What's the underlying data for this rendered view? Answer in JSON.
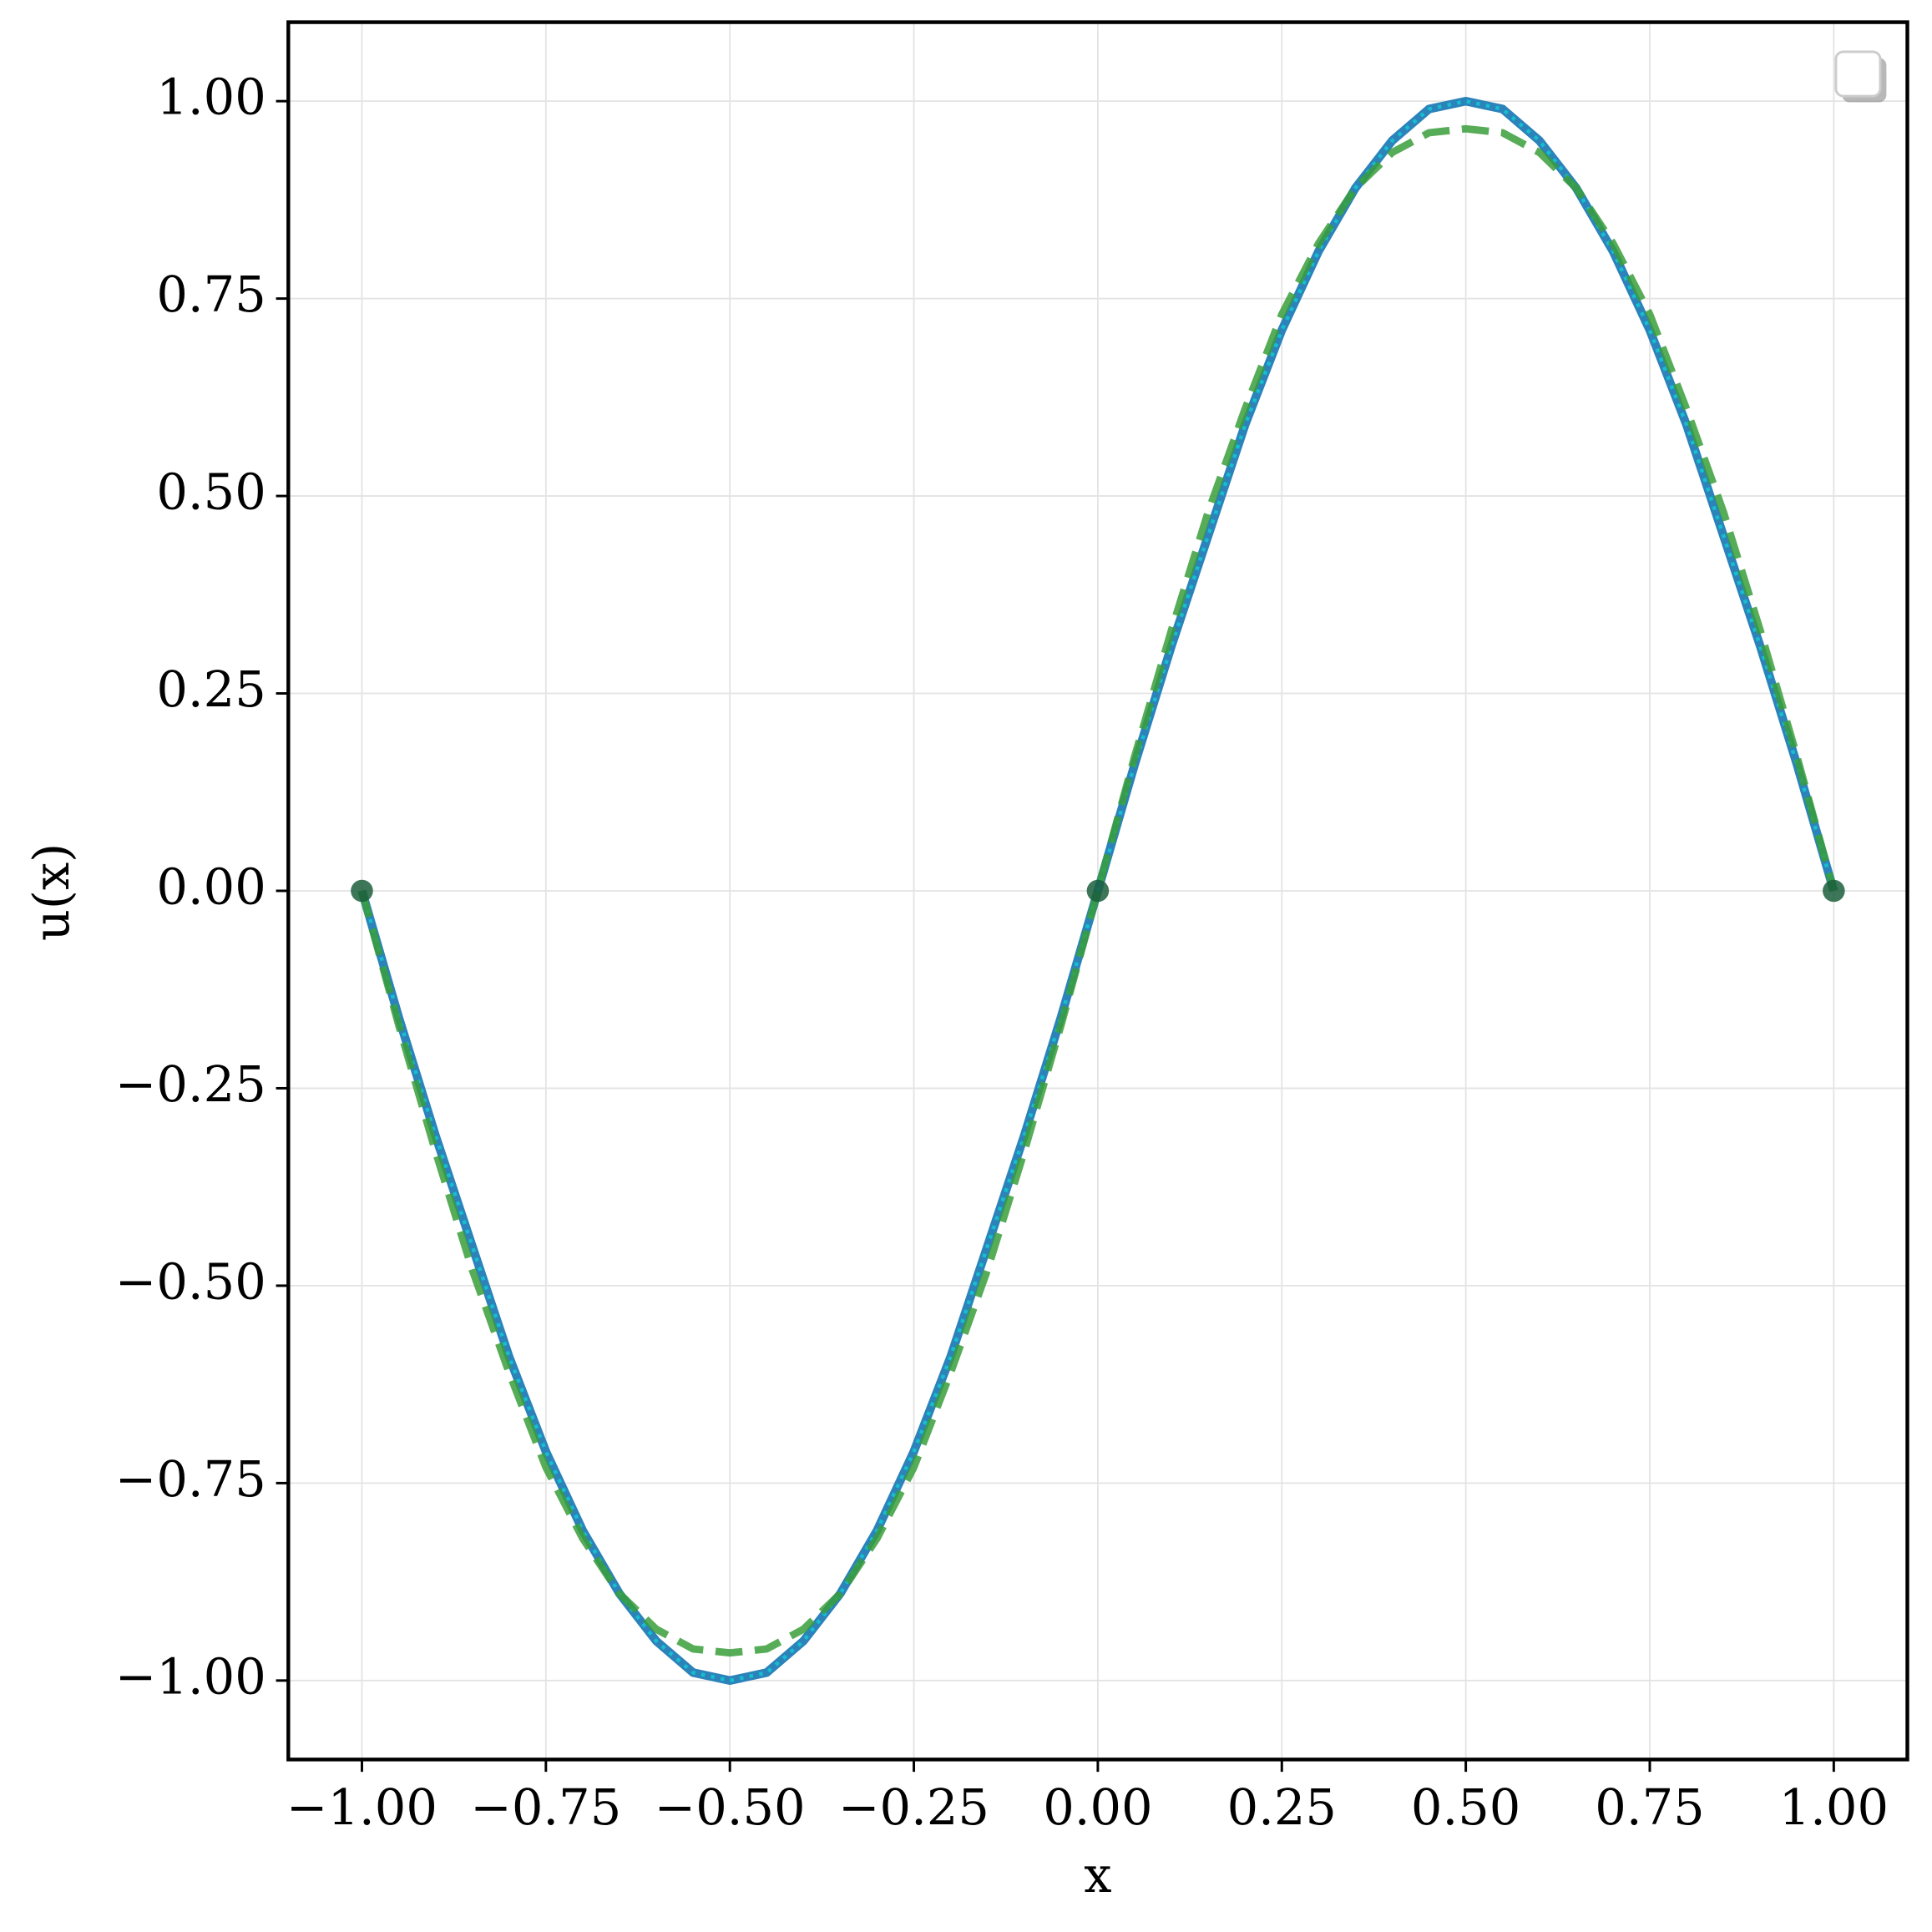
{
  "chart_data": {
    "type": "line",
    "x_label": "x",
    "y_label": "u(x)",
    "x": [
      -1,
      -0.95,
      -0.9,
      -0.85,
      -0.8,
      -0.75,
      -0.7,
      -0.65,
      -0.6,
      -0.55,
      -0.5,
      -0.45,
      -0.4,
      -0.35,
      -0.3,
      -0.25,
      -0.2,
      -0.15,
      -0.1,
      -0.05,
      0,
      0.05,
      0.1,
      0.15,
      0.2,
      0.25,
      0.3,
      0.35,
      0.4,
      0.45,
      0.5,
      0.55,
      0.6,
      0.65,
      0.7,
      0.75,
      0.8,
      0.85,
      0.9,
      0.95,
      1
    ],
    "series": [
      {
        "color": "#2b83ba",
        "style": "solid",
        "width": 7,
        "values": [
          0,
          -0.16,
          -0.31,
          -0.45,
          -0.59,
          -0.71,
          -0.81,
          -0.89,
          -0.95,
          -0.99,
          -1,
          -0.99,
          -0.95,
          -0.89,
          -0.81,
          -0.71,
          -0.59,
          -0.45,
          -0.31,
          -0.16,
          0,
          0.16,
          0.31,
          0.45,
          0.59,
          0.71,
          0.81,
          0.89,
          0.95,
          0.99,
          1,
          0.99,
          0.95,
          0.89,
          0.81,
          0.71,
          0.59,
          0.45,
          0.31,
          0.16,
          0
        ]
      },
      {
        "color": "#17becf",
        "style": "dotted",
        "width": 3,
        "values": [
          0,
          -0.16,
          -0.31,
          -0.45,
          -0.59,
          -0.71,
          -0.81,
          -0.89,
          -0.95,
          -0.99,
          -1,
          -0.99,
          -0.95,
          -0.89,
          -0.81,
          -0.71,
          -0.59,
          -0.45,
          -0.31,
          -0.16,
          0,
          0.16,
          0.31,
          0.45,
          0.59,
          0.71,
          0.81,
          0.89,
          0.95,
          0.99,
          1,
          0.99,
          0.95,
          0.89,
          0.81,
          0.71,
          0.59,
          0.45,
          0.31,
          0.16,
          0
        ]
      },
      {
        "color": "#3a9e3a",
        "style": "dashed",
        "width": 6,
        "values": [
          0,
          -0.17,
          -0.33,
          -0.48,
          -0.61,
          -0.73,
          -0.82,
          -0.89,
          -0.935,
          -0.96,
          -0.965,
          -0.96,
          -0.935,
          -0.89,
          -0.82,
          -0.73,
          -0.61,
          -0.48,
          -0.33,
          -0.17,
          0,
          0.17,
          0.33,
          0.48,
          0.61,
          0.73,
          0.82,
          0.89,
          0.935,
          0.96,
          0.965,
          0.96,
          0.935,
          0.89,
          0.82,
          0.73,
          0.61,
          0.48,
          0.33,
          0.17,
          0
        ]
      },
      {
        "type": "scatter",
        "color": "#1b5e3b",
        "x": [
          -1,
          0,
          1
        ],
        "values": [
          0,
          0,
          0
        ]
      }
    ],
    "xlim": [
      -1.1,
      1.1
    ],
    "ylim": [
      -1.1,
      1.1
    ],
    "xticks": [
      {
        "value": -1,
        "label": "−1.00"
      },
      {
        "value": -0.75,
        "label": "−0.75"
      },
      {
        "value": -0.5,
        "label": "−0.50"
      },
      {
        "value": -0.25,
        "label": "−0.25"
      },
      {
        "value": 0,
        "label": "0.00"
      },
      {
        "value": 0.25,
        "label": "0.25"
      },
      {
        "value": 0.5,
        "label": "0.50"
      },
      {
        "value": 0.75,
        "label": "0.75"
      },
      {
        "value": 1,
        "label": "1.00"
      }
    ],
    "yticks": [
      {
        "value": -1,
        "label": "−1.00"
      },
      {
        "value": -0.75,
        "label": "−0.75"
      },
      {
        "value": -0.5,
        "label": "−0.50"
      },
      {
        "value": -0.25,
        "label": "−0.25"
      },
      {
        "value": 0,
        "label": "0.00"
      },
      {
        "value": 0.25,
        "label": "0.25"
      },
      {
        "value": 0.5,
        "label": "0.50"
      },
      {
        "value": 0.75,
        "label": "0.75"
      },
      {
        "value": 1,
        "label": "1.00"
      }
    ],
    "grid": true
  }
}
